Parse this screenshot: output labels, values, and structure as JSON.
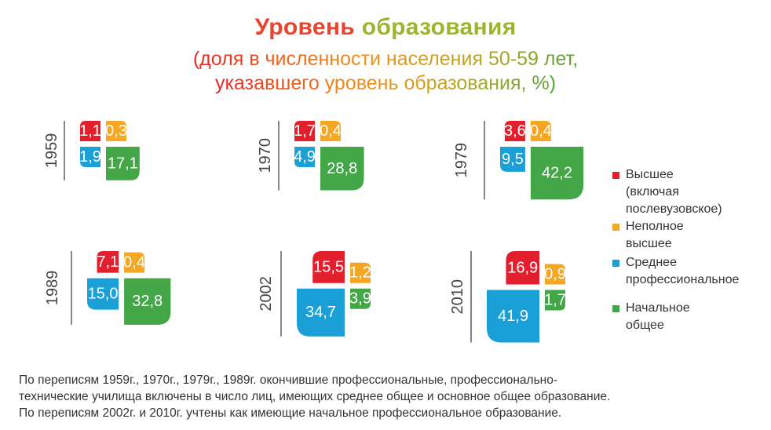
{
  "chart_data": {
    "type": "square-pie",
    "title": "Уровень образования",
    "subtitle_lines": [
      "(доля в численности населения 50-59 лет,",
      "указавшего уровень образования, %)"
    ],
    "categories": [
      "Высшее (включая послевузовское)",
      "Неполное высшее",
      "Среднее профессиональное",
      "Начальное общее"
    ],
    "colors": [
      "#e31e2d",
      "#f5a623",
      "#1a9fd6",
      "#43a647"
    ],
    "panels": [
      {
        "year": "1959",
        "values": [
          1.1,
          0.3,
          1.9,
          17.1
        ],
        "labels": [
          "1,1",
          "0,3",
          "1,9",
          "17,1"
        ]
      },
      {
        "year": "1970",
        "values": [
          1.7,
          0.4,
          4.9,
          28.8
        ],
        "labels": [
          "1,7",
          "0,4",
          "4,9",
          "28,8"
        ]
      },
      {
        "year": "1979",
        "values": [
          3.6,
          0.4,
          9.5,
          42.2
        ],
        "labels": [
          "3,6",
          "0,4",
          "9,5",
          "42,2"
        ]
      },
      {
        "year": "1989",
        "values": [
          7.1,
          0.4,
          15.0,
          32.8
        ],
        "labels": [
          "7,1",
          "0,4",
          "15,0",
          "32,8"
        ]
      },
      {
        "year": "2002",
        "values": [
          15.5,
          1.2,
          34.7,
          3.9
        ],
        "labels": [
          "15,5",
          "1,2",
          "34,7",
          "3,9"
        ]
      },
      {
        "year": "2010",
        "values": [
          16.9,
          0.9,
          41.9,
          1.7
        ],
        "labels": [
          "16,9",
          "0,9",
          "41,9",
          "1,7"
        ]
      }
    ]
  },
  "legend": [
    {
      "label": "Высшее (включая\nпослевузовское)",
      "color": "#e31e2d"
    },
    {
      "label": "Неполное высшее",
      "color": "#f5a623"
    },
    {
      "label": "Среднее\nпрофессиональное",
      "color": "#1a9fd6"
    },
    {
      "label": "Начальное общее",
      "color": "#43a647"
    }
  ],
  "footnote": [
    "По переписям 1959г., 1970г., 1979г., 1989г. окончившие профессиональные, профессионально-",
    "технические училища  включены в число лиц, имеющих  среднее общее и  основное общее образование.",
    "По переписям 2002г. и 2010г. учтены как имеющие  начальное профессиональное образование."
  ]
}
